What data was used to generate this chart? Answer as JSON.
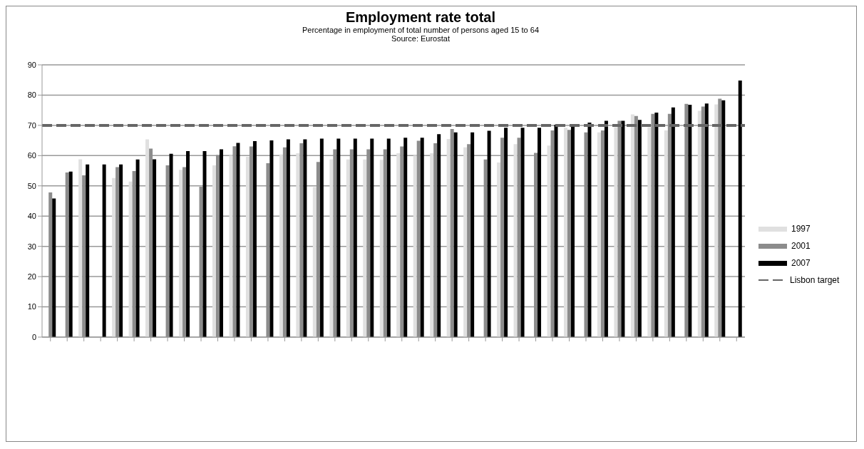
{
  "chart_data": {
    "type": "bar",
    "title": "Employment rate total",
    "subtitle": "Percentage in employment of total number of persons aged 15 to 64",
    "annotations": [
      "Source: Eurostat"
    ],
    "categories": [
      null,
      null,
      null,
      null,
      null,
      null,
      null,
      null,
      null,
      null,
      null,
      null,
      null,
      null,
      null,
      null,
      null,
      null,
      null,
      null,
      null,
      null,
      null,
      null,
      null,
      null,
      null,
      null,
      null,
      null,
      null,
      null,
      null,
      null,
      null,
      null,
      null,
      null,
      null,
      null,
      null,
      null
    ],
    "series": [
      {
        "name": "1997",
        "color": "#e0e0e0",
        "values": [
          null,
          null,
          58.8,
          null,
          52.6,
          51.4,
          65.4,
          null,
          55.3,
          null,
          56.8,
          60,
          59.6,
          null,
          60.4,
          60.8,
          49.6,
          58.7,
          58.7,
          58.7,
          58.6,
          60.8,
          60,
          60.8,
          65.5,
          62.7,
          null,
          57.7,
          63.8,
          null,
          63.3,
          69.2,
          null,
          67.7,
          69.4,
          73.6,
          69.4,
          68.3,
          null,
          74.8,
          76.9,
          null
        ]
      },
      {
        "name": "2001",
        "color": "#8c8c8c",
        "values": [
          47.8,
          54.4,
          53.5,
          null,
          56.2,
          54.9,
          62.3,
          56.8,
          56.2,
          49.7,
          60.2,
          63.1,
          63,
          57.5,
          62.7,
          64.1,
          57.9,
          62.1,
          62.1,
          62.1,
          62.1,
          63,
          64.9,
          64.1,
          68.8,
          63.8,
          58.7,
          65.9,
          65.9,
          60.9,
          68.3,
          68.5,
          67.7,
          68.3,
          71.5,
          73.1,
          73.8,
          73.8,
          77.1,
          76.2,
          78.8,
          null
        ]
      },
      {
        "name": "2007",
        "color": "#000000",
        "values": [
          45.8,
          54.7,
          57.1,
          57.1,
          57.1,
          58.7,
          58.8,
          60.6,
          61.5,
          61.5,
          62.1,
          64.2,
          64.8,
          65,
          65.4,
          65.4,
          65.6,
          65.6,
          65.6,
          65.6,
          65.6,
          65.9,
          65.9,
          67.1,
          67.7,
          67.7,
          68.2,
          69.2,
          69.2,
          69.2,
          70.2,
          69.8,
          70.9,
          71.5,
          71.5,
          71.8,
          74.2,
          75.9,
          76.8,
          77.2,
          78.3,
          84.8
        ]
      }
    ],
    "ref_lines": [
      {
        "axis": "y",
        "value": 70,
        "label": "Lisbon target",
        "color": "#666666",
        "line_style": "dashed"
      }
    ],
    "ylim": [
      0,
      90
    ],
    "yticks": [
      0,
      10,
      20,
      30,
      40,
      50,
      60,
      70,
      80,
      90
    ],
    "grid": "y",
    "legend": "right"
  }
}
